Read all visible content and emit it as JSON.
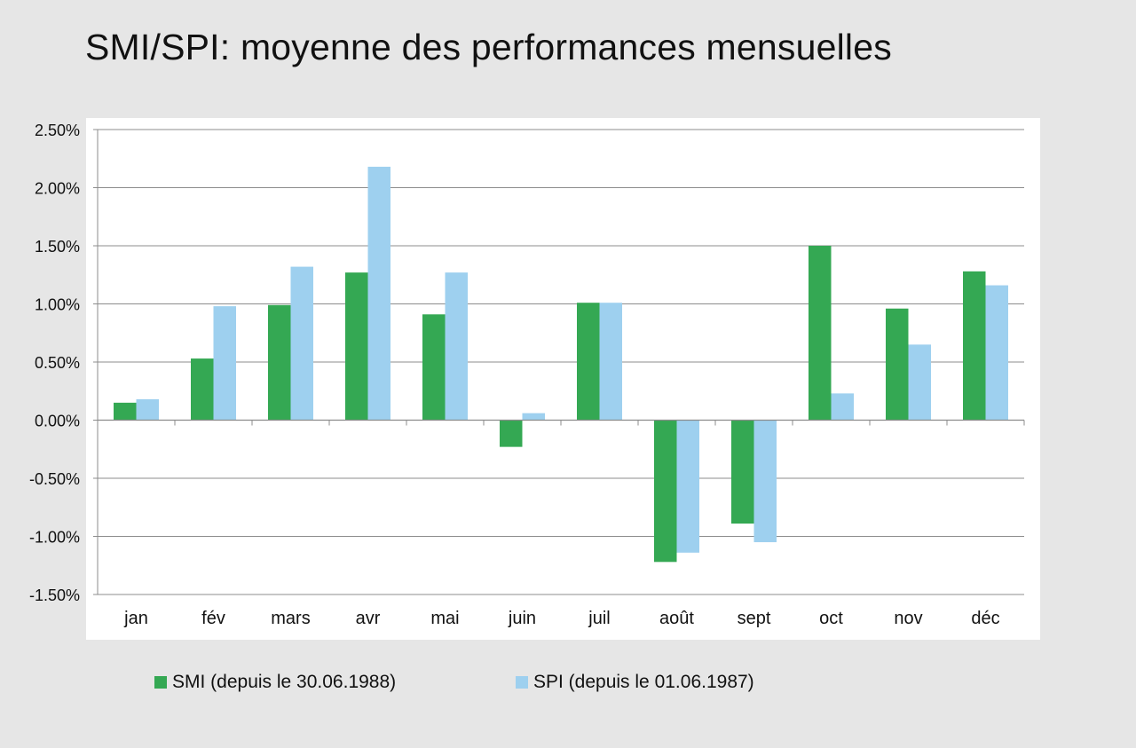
{
  "title": "SMI/SPI: moyenne des performances mensuelles",
  "colors": {
    "smi": "#34a853",
    "spi": "#9ed0ef",
    "grid": "#8c8c8c",
    "axis": "#8c8c8c"
  },
  "legend": {
    "smi": "SMI (depuis le 30.06.1988)",
    "spi": "SPI (depuis le 01.06.1987)"
  },
  "chart_data": {
    "type": "bar",
    "categories": [
      "jan",
      "fév",
      "mars",
      "avr",
      "mai",
      "juin",
      "juil",
      "août",
      "sept",
      "oct",
      "nov",
      "déc"
    ],
    "series": [
      {
        "name": "SMI (depuis le 30.06.1988)",
        "values": [
          0.0015,
          0.0053,
          0.0099,
          0.0127,
          0.0091,
          -0.0023,
          0.0101,
          -0.0122,
          -0.0089,
          0.015,
          0.0096,
          0.0128
        ]
      },
      {
        "name": "SPI (depuis le 01.06.1987)",
        "values": [
          0.0018,
          0.0098,
          0.0132,
          0.0218,
          0.0127,
          0.0006,
          0.0101,
          -0.0114,
          -0.0105,
          0.0023,
          0.0065,
          0.0116
        ]
      }
    ],
    "ylim": [
      -0.015,
      0.025
    ],
    "yticks": [
      0.025,
      0.02,
      0.015,
      0.01,
      0.005,
      0,
      -0.005,
      -0.01,
      -0.015
    ],
    "ytick_labels": [
      "2.50%",
      "2.00%",
      "1.50%",
      "1.00%",
      "0.50%",
      "0.00%",
      "-0.50%",
      "-1.00%",
      "-1.50%"
    ],
    "grid": true,
    "legend_position": "bottom"
  }
}
